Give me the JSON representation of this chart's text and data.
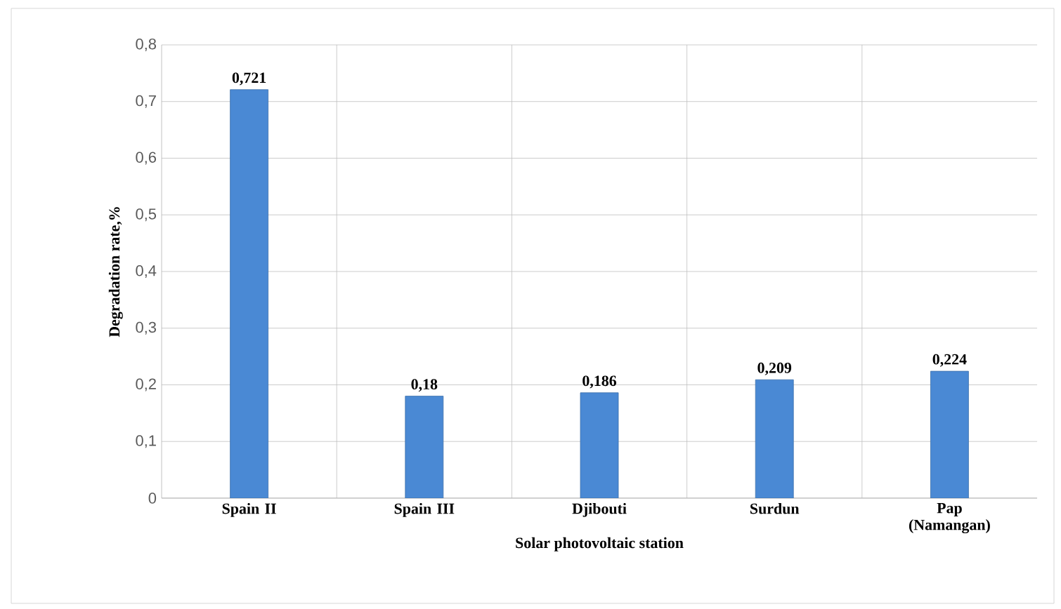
{
  "chart_data": {
    "type": "bar",
    "xlabel": "Solar photovoltaic station",
    "ylabel": "Degradation rate,%",
    "categories": [
      "Spain II",
      "Spain III",
      "Djibouti",
      "Surdun",
      "Pap (Namangan)"
    ],
    "values": [
      0.721,
      0.18,
      0.186,
      0.209,
      0.224
    ],
    "value_labels": [
      "0,721",
      "0,18",
      "0,186",
      "0,209",
      "0,224"
    ],
    "color": "#4a89d4",
    "ylim": [
      0,
      0.8
    ],
    "yticks": [
      0,
      {
        "value": 0.1,
        "label": "0,1"
      },
      {
        "value": 0.2,
        "label": "0,2"
      },
      {
        "value": 0.3,
        "label": "0,3"
      },
      {
        "value": 0.4,
        "label": "0,4"
      },
      {
        "value": 0.5,
        "label": "0,5"
      },
      {
        "value": 0.6,
        "label": "0,6"
      },
      {
        "value": 0.7,
        "label": "0,7"
      },
      {
        "value": 0.8,
        "label": "0,8"
      }
    ],
    "grid": true
  }
}
